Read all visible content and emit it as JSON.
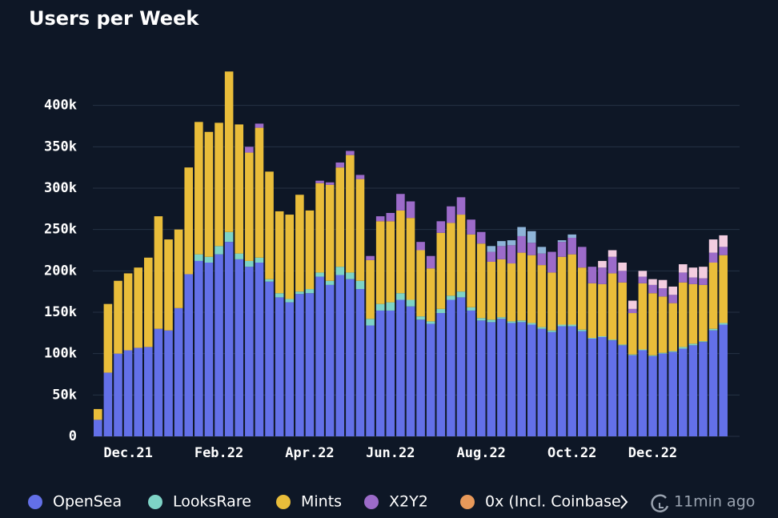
{
  "chart_data": {
    "type": "bar",
    "stacked": true,
    "title": "Users per Week",
    "categories": [
      null,
      null,
      null,
      "Dec.21",
      null,
      null,
      null,
      null,
      null,
      null,
      null,
      null,
      "Feb.22",
      null,
      null,
      null,
      null,
      null,
      null,
      null,
      null,
      "Apr.22",
      null,
      null,
      null,
      null,
      null,
      null,
      null,
      "Jun.22",
      null,
      null,
      null,
      null,
      null,
      null,
      null,
      null,
      "Aug.22",
      null,
      null,
      null,
      null,
      null,
      null,
      null,
      null,
      "Oct.22",
      null,
      null,
      null,
      null,
      null,
      null,
      null,
      "Dec.22",
      null,
      null,
      null,
      null,
      null,
      null,
      null
    ],
    "series": [
      {
        "name": "OpenSea",
        "color": "#6370e8",
        "values": [
          20000,
          77000,
          100000,
          104000,
          107000,
          108000,
          130000,
          128000,
          155000,
          196000,
          212000,
          210000,
          220000,
          235000,
          214000,
          205000,
          210000,
          187000,
          168000,
          162000,
          172000,
          173000,
          193000,
          183000,
          195000,
          190000,
          178000,
          134000,
          152000,
          152000,
          165000,
          157000,
          141000,
          136000,
          149000,
          165000,
          168000,
          152000,
          140000,
          138000,
          142000,
          137000,
          138000,
          135000,
          130000,
          126000,
          133000,
          133000,
          127000,
          118000,
          120000,
          116000,
          110000,
          98000,
          104000,
          97000,
          100000,
          102000,
          106000,
          110000,
          114000,
          128000,
          135000
        ]
      },
      {
        "name": "LooksRare",
        "color": "#7ed3c6",
        "values": [
          0,
          0,
          0,
          0,
          0,
          0,
          0,
          0,
          0,
          0,
          8000,
          7000,
          10000,
          12000,
          7000,
          7000,
          6000,
          3000,
          5000,
          4000,
          3000,
          5000,
          5000,
          5000,
          10000,
          8000,
          10000,
          8000,
          8000,
          10000,
          8000,
          8000,
          4000,
          3000,
          5000,
          5000,
          7000,
          4000,
          3000,
          3000,
          2000,
          2000,
          2000,
          2000,
          2000,
          2000,
          2000,
          2000,
          2000,
          1000,
          1000,
          1000,
          1000,
          1000,
          1000,
          1000,
          1000,
          1000,
          2000,
          2000,
          1000,
          2000,
          2000
        ]
      },
      {
        "name": "Mints",
        "color": "#e9bd3a",
        "values": [
          13000,
          83000,
          88000,
          93000,
          97000,
          108000,
          136000,
          110000,
          95000,
          129000,
          160000,
          151000,
          149000,
          194000,
          156000,
          131000,
          157000,
          130000,
          99000,
          102000,
          117000,
          95000,
          108000,
          116000,
          120000,
          142000,
          123000,
          71000,
          100000,
          98000,
          100000,
          99000,
          80000,
          64000,
          92000,
          88000,
          93000,
          88000,
          90000,
          70000,
          70000,
          70000,
          82000,
          82000,
          75000,
          70000,
          82000,
          85000,
          75000,
          66000,
          63000,
          80000,
          75000,
          50000,
          80000,
          75000,
          68000,
          58000,
          78000,
          72000,
          68000,
          80000,
          82000
        ]
      },
      {
        "name": "X2Y2",
        "color": "#9c6bc9",
        "values": [
          0,
          0,
          0,
          0,
          0,
          0,
          0,
          0,
          0,
          0,
          0,
          0,
          0,
          0,
          0,
          7000,
          5000,
          0,
          0,
          0,
          0,
          0,
          3000,
          3000,
          6000,
          5000,
          5000,
          5000,
          6000,
          10000,
          20000,
          20000,
          10000,
          15000,
          14000,
          20000,
          21000,
          18000,
          14000,
          12000,
          16000,
          22000,
          20000,
          15000,
          14000,
          25000,
          18000,
          20000,
          25000,
          20000,
          20000,
          20000,
          14000,
          5000,
          8000,
          10000,
          10000,
          10000,
          12000,
          8000,
          8000,
          12000,
          10000
        ]
      },
      {
        "name": "0x (Incl. Coinbase",
        "color": "#e8995a",
        "values": [
          0,
          0,
          0,
          0,
          0,
          0,
          0,
          0,
          0,
          0,
          0,
          0,
          0,
          0,
          0,
          0,
          0,
          0,
          0,
          0,
          0,
          0,
          0,
          0,
          0,
          0,
          0,
          0,
          0,
          0,
          0,
          0,
          0,
          0,
          0,
          0,
          0,
          0,
          0,
          0,
          0,
          0,
          0,
          0,
          0,
          0,
          0,
          0,
          0,
          0,
          0,
          0,
          0,
          0,
          0,
          0,
          0,
          0,
          0,
          0,
          0,
          0,
          0
        ]
      },
      {
        "color": "#8eb4d8",
        "values": [
          0,
          0,
          0,
          0,
          0,
          0,
          0,
          0,
          0,
          0,
          0,
          0,
          0,
          0,
          0,
          0,
          0,
          0,
          0,
          0,
          0,
          0,
          0,
          0,
          0,
          0,
          0,
          0,
          0,
          0,
          0,
          0,
          0,
          0,
          0,
          0,
          0,
          0,
          0,
          7000,
          6000,
          6000,
          11000,
          14000,
          8000,
          0,
          2000,
          4000,
          0,
          0,
          0,
          0,
          0,
          0,
          0,
          0,
          0,
          0,
          0,
          0,
          0,
          0,
          0
        ]
      },
      {
        "color": "#f3cde0",
        "values": [
          0,
          0,
          0,
          0,
          0,
          0,
          0,
          0,
          0,
          0,
          0,
          0,
          0,
          0,
          0,
          0,
          0,
          0,
          0,
          0,
          0,
          0,
          0,
          0,
          0,
          0,
          0,
          0,
          0,
          0,
          0,
          0,
          0,
          0,
          0,
          0,
          0,
          0,
          0,
          0,
          0,
          0,
          0,
          0,
          0,
          0,
          0,
          0,
          0,
          0,
          8000,
          8000,
          10000,
          10000,
          7000,
          7000,
          10000,
          10000,
          10000,
          12000,
          14000,
          16000,
          14000
        ]
      }
    ],
    "ylim": [
      0,
      450000
    ],
    "yticks": [
      0,
      {
        "value": 50000,
        "label": "50k"
      },
      {
        "value": 100000,
        "label": "100k"
      },
      {
        "value": 150000,
        "label": "150k"
      },
      {
        "value": 200000,
        "label": "200k"
      },
      {
        "value": 250000,
        "label": "250k"
      },
      {
        "value": 300000,
        "label": "300k"
      },
      {
        "value": 350000,
        "label": "350k"
      },
      {
        "value": 400000,
        "label": "400k"
      }
    ],
    "grid": true,
    "updated": "11min ago"
  }
}
